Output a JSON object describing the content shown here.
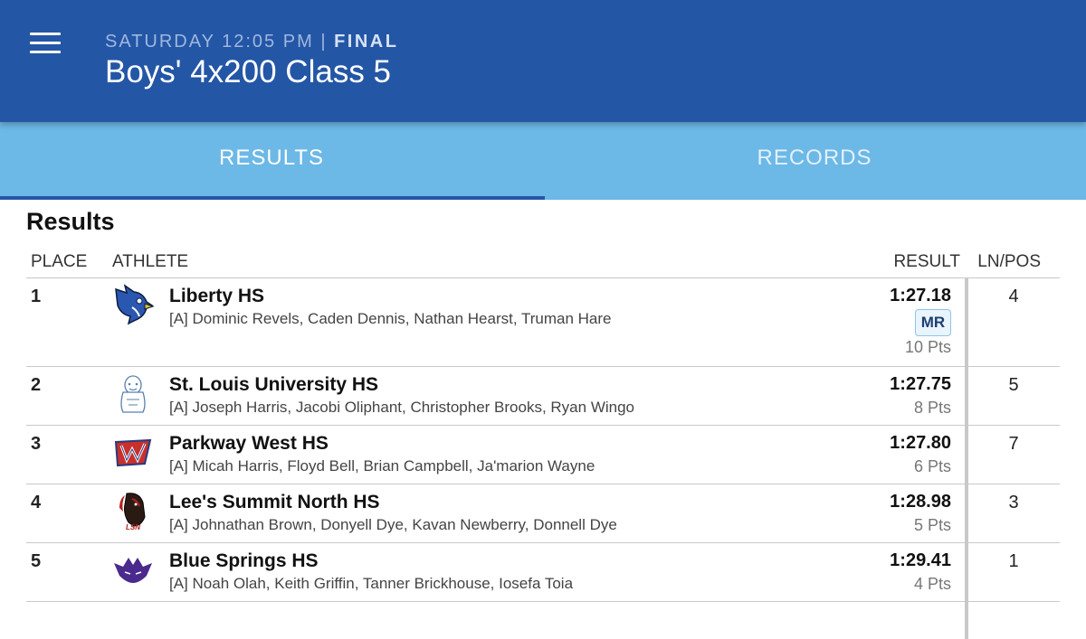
{
  "header": {
    "day_time": "SATURDAY 12:05 PM",
    "separator": "|",
    "status": "FINAL",
    "title": "Boys' 4x200 Class 5",
    "menu_icon": "hamburger-menu-icon"
  },
  "tabs": [
    {
      "label": "RESULTS",
      "active": true
    },
    {
      "label": "RECORDS",
      "active": false
    }
  ],
  "section_title": "Results",
  "columns": {
    "place": "PLACE",
    "athlete": "ATHLETE",
    "result": "RESULT",
    "lnpos": "LN/POS"
  },
  "rows": [
    {
      "place": "1",
      "team": "Liberty HS",
      "names": "[A] Dominic Revels, Caden Dennis, Nathan Hearst, Truman Hare",
      "time": "1:27.18",
      "badge": "MR",
      "pts": "10 Pts",
      "lnpos": "4",
      "logo": "bluejay-logo-icon"
    },
    {
      "place": "2",
      "team": "St. Louis University HS",
      "names": "[A] Joseph Harris, Jacobi Oliphant, Christopher Brooks, Ryan Wingo",
      "time": "1:27.75",
      "pts": "8 Pts",
      "lnpos": "5",
      "logo": "billiken-logo-icon"
    },
    {
      "place": "3",
      "team": "Parkway West HS",
      "names": "[A] Micah Harris, Floyd Bell, Brian Campbell, Ja'marion Wayne",
      "time": "1:27.80",
      "pts": "6 Pts",
      "lnpos": "7",
      "logo": "pw-logo-icon"
    },
    {
      "place": "4",
      "team": "Lee's Summit North HS",
      "names": "[A] Johnathan Brown, Donyell Dye, Kavan Newberry, Donnell Dye",
      "time": "1:28.98",
      "pts": "5 Pts",
      "lnpos": "3",
      "logo": "bronco-lsn-logo-icon",
      "logo_text": "LSN"
    },
    {
      "place": "5",
      "team": "Blue Springs HS",
      "names": "[A] Noah Olah, Keith Griffin, Tanner Brickhouse, Iosefa Toia",
      "time": "1:29.41",
      "pts": "4 Pts",
      "lnpos": "1",
      "logo": "wildcat-logo-icon"
    }
  ]
}
